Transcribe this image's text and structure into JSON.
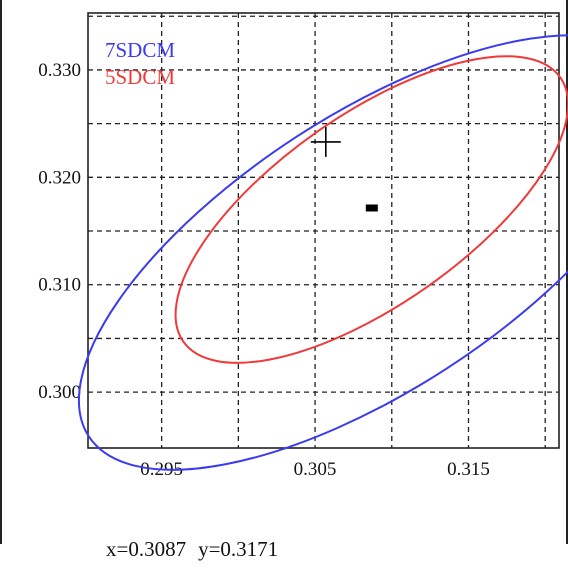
{
  "chart_data": {
    "type": "line",
    "x_ticks": [
      "0.295",
      "0.305",
      "0.315"
    ],
    "y_ticks": [
      "0.330",
      "0.320",
      "0.310",
      "0.300"
    ],
    "xlim": [
      0.2902,
      0.3209
    ],
    "ylim": [
      0.2948,
      0.3353
    ],
    "grid": true,
    "legend_position": "top-left",
    "series": [
      {
        "name": "7SDCM",
        "color": "#3b3bef",
        "center": [
          0.3087,
          0.313
        ],
        "semi_major": 0.022,
        "semi_minor": 0.009,
        "angle_deg": 33
      },
      {
        "name": "5SDCM",
        "color": "#f03a3a",
        "center": [
          0.3087,
          0.317
        ],
        "semi_major": 0.015,
        "semi_minor": 0.0062,
        "angle_deg": 35
      }
    ],
    "center_marker": {
      "x": 0.3087,
      "y": 0.3171,
      "color": "#000000"
    },
    "cursor_marker": {
      "x": 0.3057,
      "y": 0.3233,
      "color": "#000000"
    }
  },
  "readout": {
    "x_text": "x=0.3087",
    "y_text": "y=0.3171"
  }
}
